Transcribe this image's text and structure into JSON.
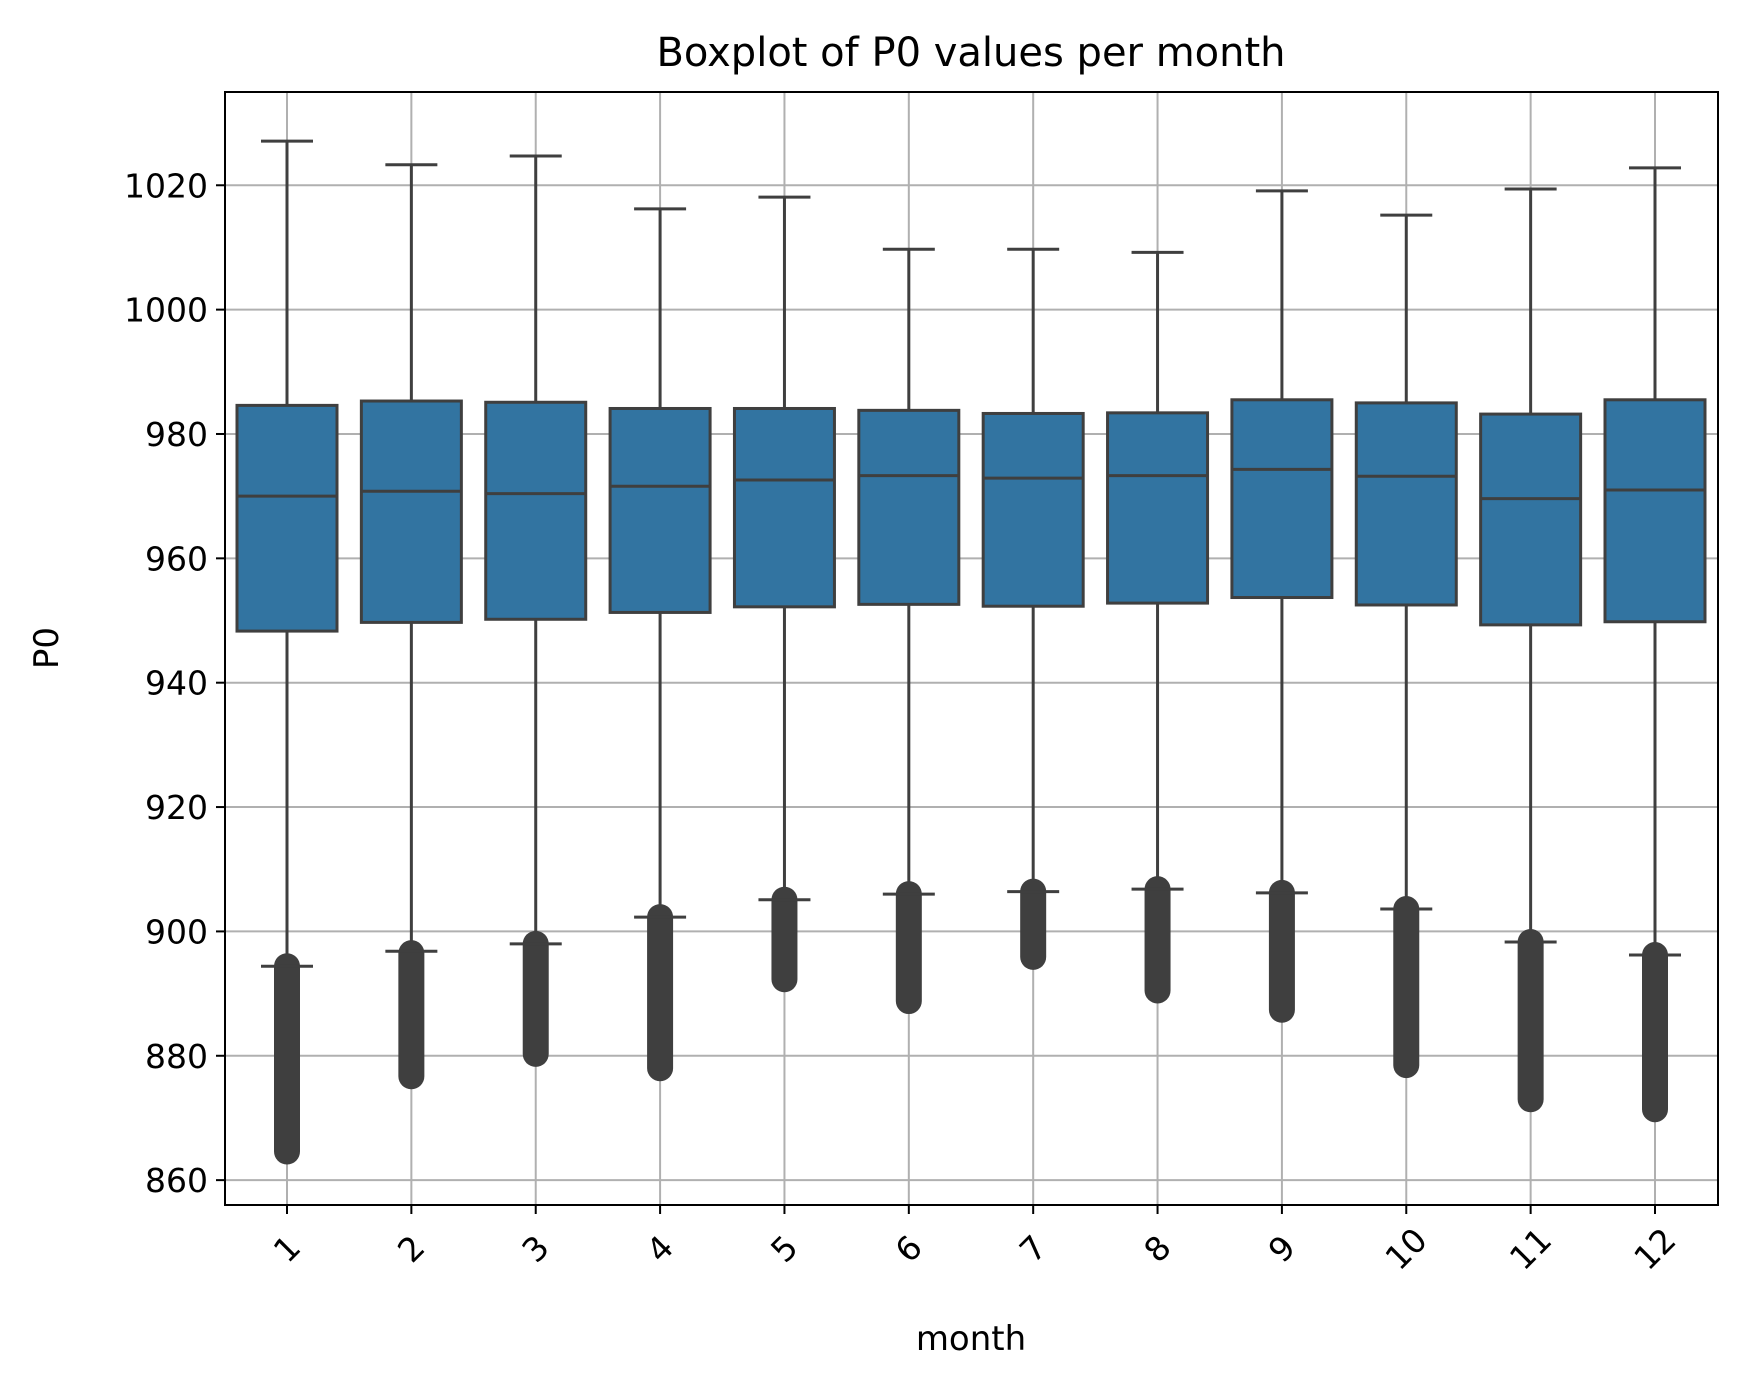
{
  "chart_data": {
    "type": "box",
    "title": "Boxplot of P0 values per month",
    "xlabel": "month",
    "ylabel": "P0",
    "ylim": [
      856,
      1035
    ],
    "yticks": [
      860,
      880,
      900,
      920,
      940,
      960,
      980,
      1000,
      1020
    ],
    "grid": true,
    "box_color": "#3274a1",
    "line_color": "#3f3f3f",
    "categories": [
      "1",
      "2",
      "3",
      "4",
      "5",
      "6",
      "7",
      "8",
      "9",
      "10",
      "11",
      "12"
    ],
    "boxes": [
      {
        "month": "1",
        "whisker_low": 894.4,
        "q1": 948.3,
        "median": 970.0,
        "q3": 984.6,
        "whisker_high": 1027.1,
        "outlier_min": 864.6,
        "outlier_max": 894.4
      },
      {
        "month": "2",
        "whisker_low": 896.8,
        "q1": 949.7,
        "median": 970.8,
        "q3": 985.3,
        "whisker_high": 1023.3,
        "outlier_min": 876.7,
        "outlier_max": 896.5
      },
      {
        "month": "3",
        "whisker_low": 898.0,
        "q1": 950.2,
        "median": 970.4,
        "q3": 985.1,
        "whisker_high": 1024.7,
        "outlier_min": 880.3,
        "outlier_max": 898.0
      },
      {
        "month": "4",
        "whisker_low": 902.3,
        "q1": 951.3,
        "median": 971.6,
        "q3": 984.1,
        "whisker_high": 1016.2,
        "outlier_min": 878.0,
        "outlier_max": 902.3
      },
      {
        "month": "5",
        "whisker_low": 905.1,
        "q1": 952.2,
        "median": 972.6,
        "q3": 984.1,
        "whisker_high": 1018.1,
        "outlier_min": 892.3,
        "outlier_max": 905.1
      },
      {
        "month": "6",
        "whisker_low": 906.0,
        "q1": 952.6,
        "median": 973.3,
        "q3": 983.8,
        "whisker_high": 1009.7,
        "outlier_min": 888.8,
        "outlier_max": 906.0
      },
      {
        "month": "7",
        "whisker_low": 906.4,
        "q1": 952.3,
        "median": 972.9,
        "q3": 983.3,
        "whisker_high": 1009.7,
        "outlier_min": 895.9,
        "outlier_max": 906.4
      },
      {
        "month": "8",
        "whisker_low": 906.8,
        "q1": 952.8,
        "median": 973.3,
        "q3": 983.4,
        "whisker_high": 1009.2,
        "outlier_min": 890.5,
        "outlier_max": 906.8
      },
      {
        "month": "9",
        "whisker_low": 906.2,
        "q1": 953.7,
        "median": 974.3,
        "q3": 985.5,
        "whisker_high": 1019.1,
        "outlier_min": 887.4,
        "outlier_max": 906.2
      },
      {
        "month": "10",
        "whisker_low": 903.6,
        "q1": 952.5,
        "median": 973.2,
        "q3": 985.0,
        "whisker_high": 1015.2,
        "outlier_min": 878.5,
        "outlier_max": 903.6
      },
      {
        "month": "11",
        "whisker_low": 898.3,
        "q1": 949.3,
        "median": 969.6,
        "q3": 983.2,
        "whisker_high": 1019.4,
        "outlier_min": 873.0,
        "outlier_max": 898.3
      },
      {
        "month": "12",
        "whisker_low": 896.2,
        "q1": 949.8,
        "median": 971.0,
        "q3": 985.5,
        "whisker_high": 1022.8,
        "outlier_min": 871.4,
        "outlier_max": 896.2
      }
    ]
  }
}
